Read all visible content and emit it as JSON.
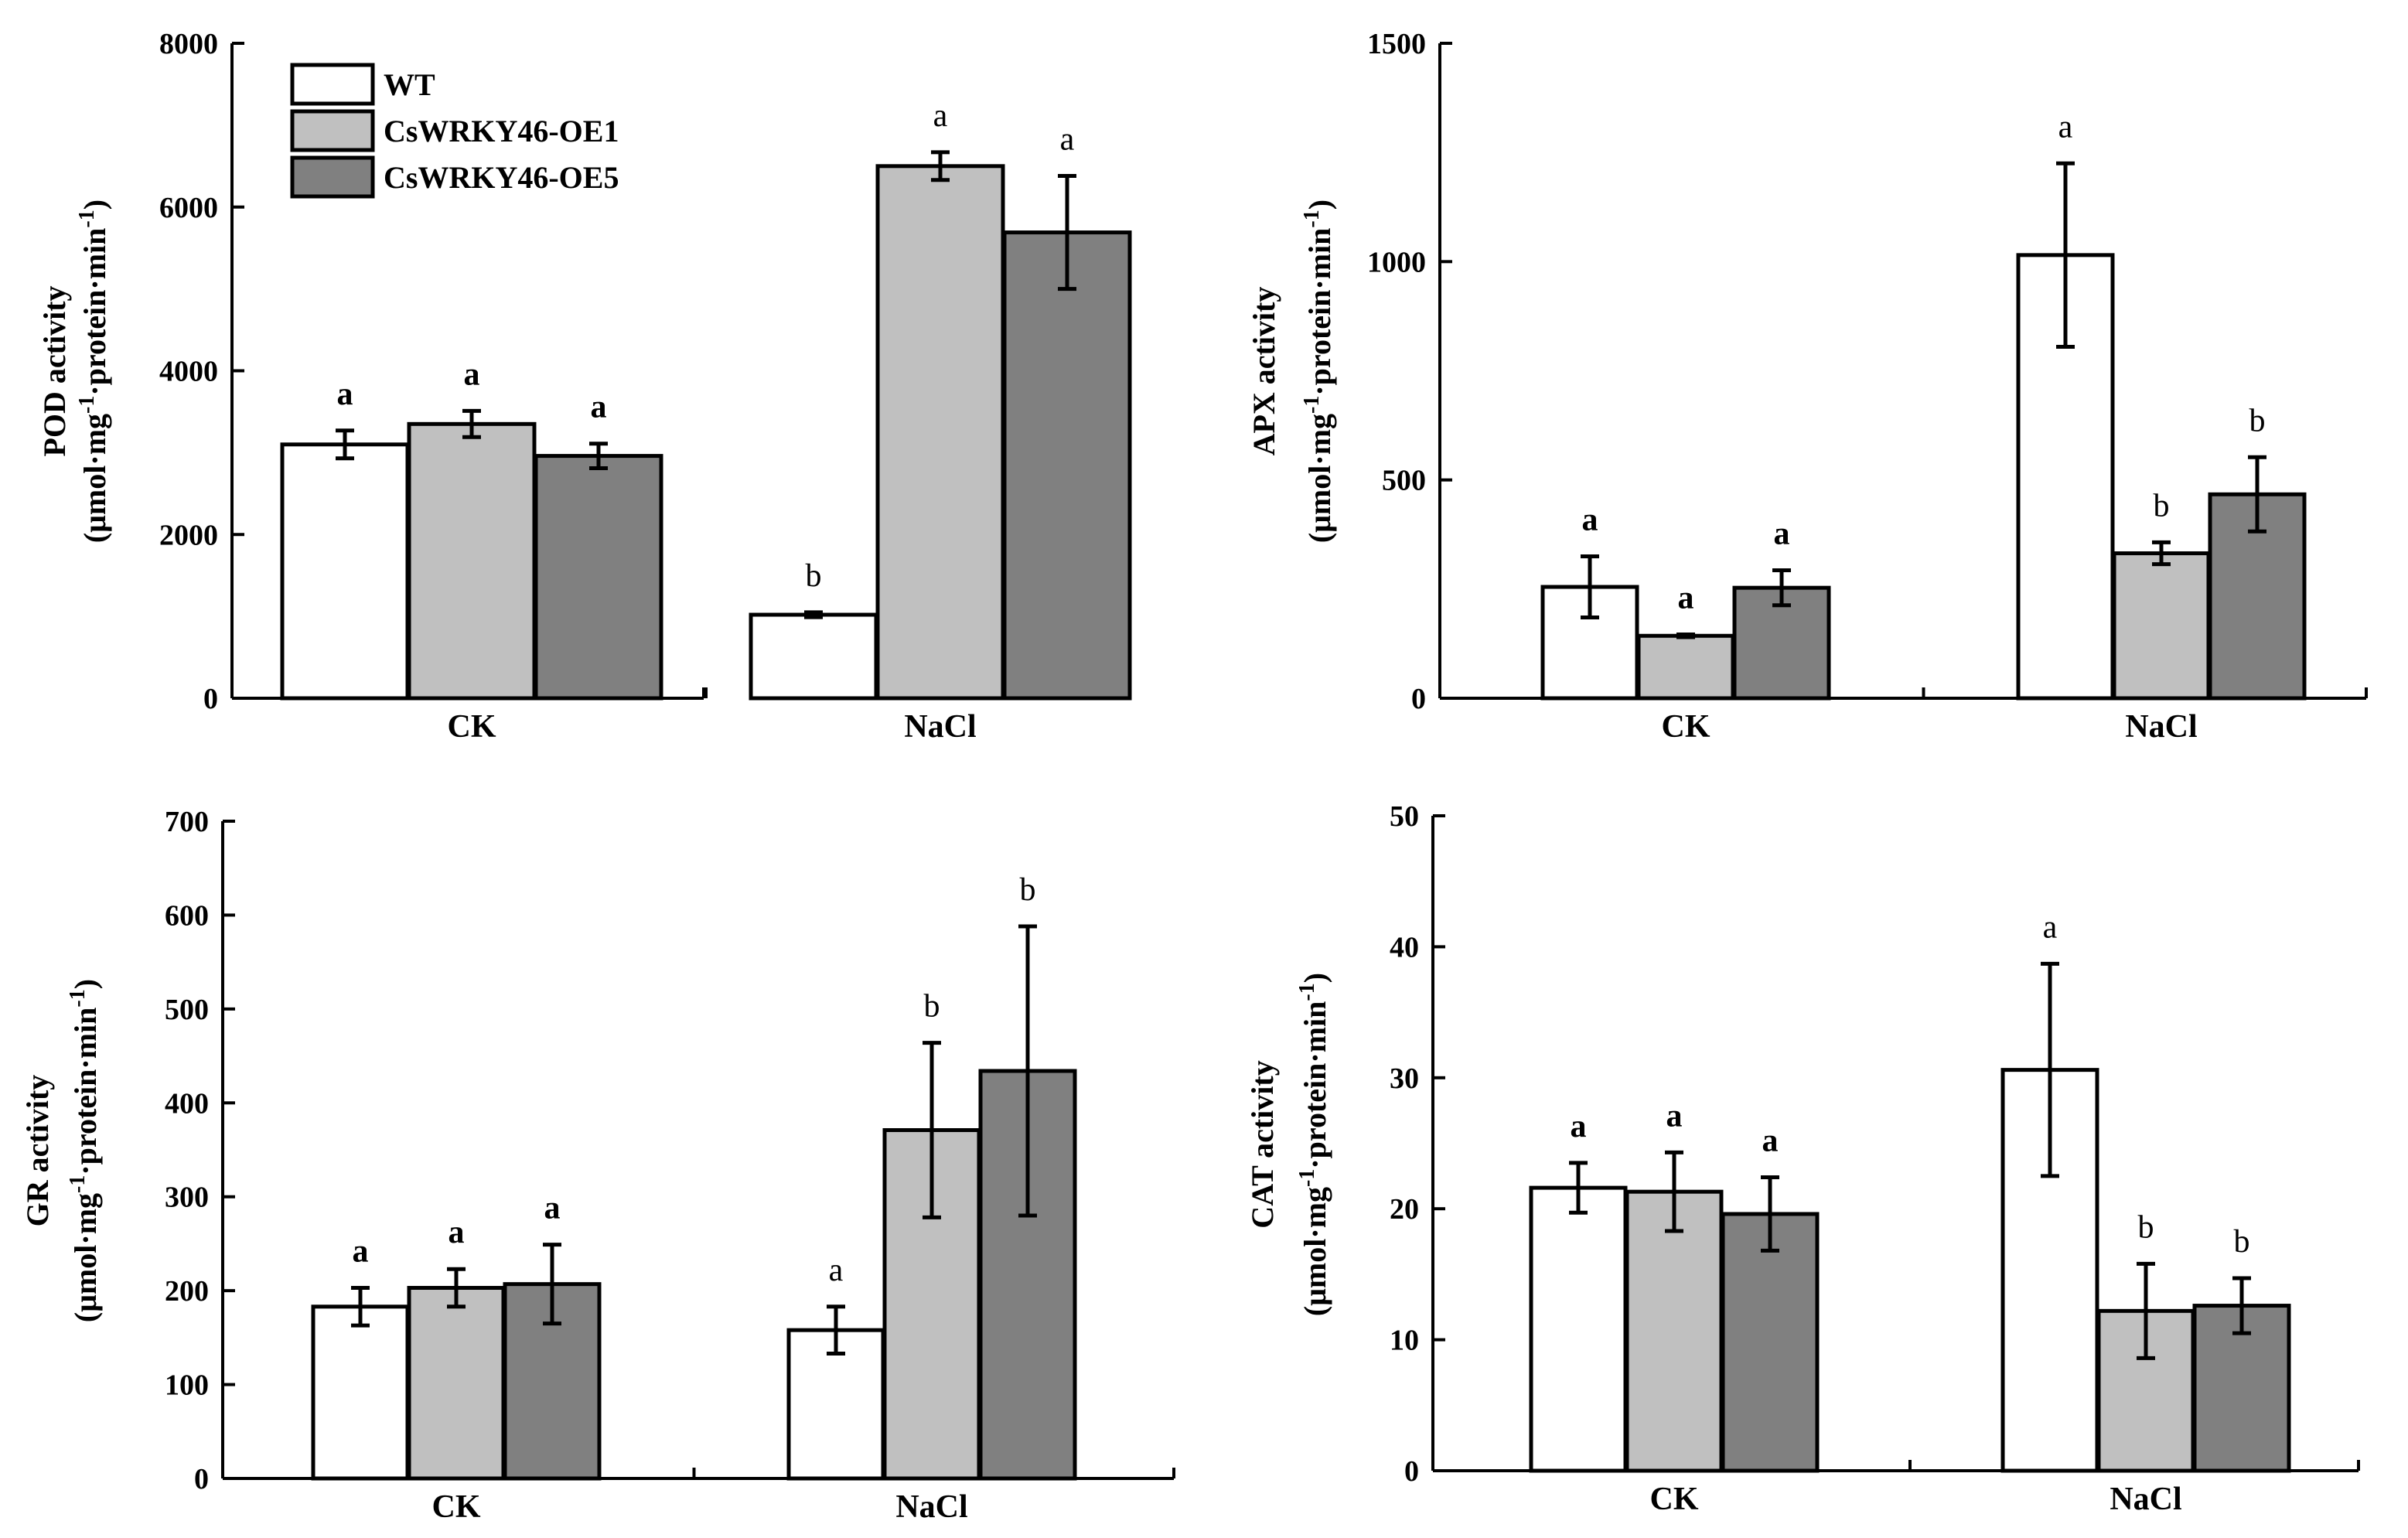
{
  "legend": [
    {
      "name": "WT",
      "color": "#ffffff"
    },
    {
      "name": "CsWRKY46-OE1",
      "color": "#c0c0c0"
    },
    {
      "name": "CsWRKY46-OE5",
      "color": "#808080"
    }
  ],
  "chart_data": [
    {
      "type": "bar",
      "panel": "top-left",
      "ylabel_line1": "POD activity",
      "ylabel_line2_parts": [
        "(μmol·mg",
        "-1",
        "·protein·min",
        "-1",
        ")"
      ],
      "ylim": [
        0,
        8000
      ],
      "yticks": [
        0,
        2000,
        4000,
        6000,
        8000
      ],
      "categories": [
        "CK",
        "NaCl"
      ],
      "series": [
        {
          "name": "WT",
          "values": [
            3100,
            1020
          ],
          "errors": [
            170,
            30
          ],
          "letters": [
            "a",
            "b"
          ]
        },
        {
          "name": "CsWRKY46-OE1",
          "values": [
            3350,
            6500
          ],
          "errors": [
            160,
            170
          ],
          "letters": [
            "a",
            "a"
          ]
        },
        {
          "name": "CsWRKY46-OE5",
          "values": [
            2960,
            5690
          ],
          "errors": [
            150,
            690
          ],
          "letters": [
            "a",
            "a"
          ]
        }
      ],
      "letter_style": [
        "bold",
        "normal"
      ],
      "show_legend": true
    },
    {
      "type": "bar",
      "panel": "top-right",
      "ylabel_line1": "APX activity",
      "ylabel_line2_parts": [
        "(μmol·mg",
        "-1",
        "·protein·min",
        "-1",
        ")"
      ],
      "ylim": [
        0,
        1500
      ],
      "yticks": [
        0,
        500,
        1000,
        1500
      ],
      "categories": [
        "CK",
        "NaCl"
      ],
      "series": [
        {
          "name": "WT",
          "values": [
            255,
            1015
          ],
          "errors": [
            70,
            210
          ],
          "letters": [
            "a",
            "a"
          ]
        },
        {
          "name": "CsWRKY46-OE1",
          "values": [
            143,
            332
          ],
          "errors": [
            3,
            25
          ],
          "letters": [
            "a",
            "b"
          ]
        },
        {
          "name": "CsWRKY46-OE5",
          "values": [
            253,
            467
          ],
          "errors": [
            40,
            85
          ],
          "letters": [
            "a",
            "b"
          ]
        }
      ],
      "letter_style": [
        "bold",
        "normal"
      ],
      "show_legend": false
    },
    {
      "type": "bar",
      "panel": "bottom-left",
      "ylabel_line1": "GR activity",
      "ylabel_line2_parts": [
        "(μmol·mg",
        "-1",
        "·protein·min",
        "-1",
        ")"
      ],
      "ylim": [
        0,
        700
      ],
      "yticks": [
        0,
        100,
        200,
        300,
        400,
        500,
        600,
        700
      ],
      "categories": [
        "CK",
        "NaCl"
      ],
      "series": [
        {
          "name": "WT",
          "values": [
            183,
            158
          ],
          "errors": [
            20,
            25
          ],
          "letters": [
            "a",
            "a"
          ]
        },
        {
          "name": "CsWRKY46-OE1",
          "values": [
            203,
            371
          ],
          "errors": [
            20,
            93
          ],
          "letters": [
            "a",
            "b"
          ]
        },
        {
          "name": "CsWRKY46-OE5",
          "values": [
            207,
            434
          ],
          "errors": [
            42,
            154
          ],
          "letters": [
            "a",
            "b"
          ]
        }
      ],
      "letter_style": [
        "bold",
        "normal"
      ],
      "show_legend": false
    },
    {
      "type": "bar",
      "panel": "bottom-right",
      "ylabel_line1": "CAT activity",
      "ylabel_line2_parts": [
        "(μmol·mg",
        "-1",
        "·protein·min",
        "-1",
        ")"
      ],
      "ylim": [
        0,
        50
      ],
      "yticks": [
        0,
        10,
        20,
        30,
        40,
        50
      ],
      "categories": [
        "CK",
        "NaCl"
      ],
      "series": [
        {
          "name": "WT",
          "values": [
            21.6,
            30.6
          ],
          "errors": [
            1.9,
            8.1
          ],
          "letters": [
            "a",
            "a"
          ]
        },
        {
          "name": "CsWRKY46-OE1",
          "values": [
            21.3,
            12.2
          ],
          "errors": [
            3.0,
            3.6
          ],
          "letters": [
            "a",
            "b"
          ]
        },
        {
          "name": "CsWRKY46-OE5",
          "values": [
            19.6,
            12.6
          ],
          "errors": [
            2.8,
            2.1
          ],
          "letters": [
            "a",
            "b"
          ]
        }
      ],
      "letter_style": [
        "bold",
        "normal"
      ],
      "show_legend": false
    }
  ]
}
